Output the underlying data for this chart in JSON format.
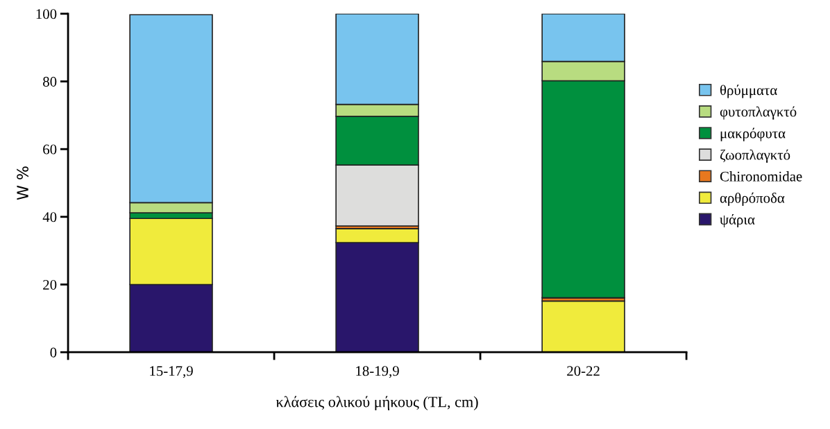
{
  "chart_data": {
    "type": "bar",
    "stacked": true,
    "xlabel": "κλάσεις ολικού μήκους (TL, cm)",
    "ylabel": "W %",
    "categories": [
      "15-17,9",
      "18-19,9",
      "20-22"
    ],
    "series": [
      {
        "name": "ψάρια",
        "color": "#29166b",
        "values": [
          20,
          32.4,
          0
        ]
      },
      {
        "name": "αρθρόποδα",
        "color": "#f0eb3c",
        "values": [
          19.5,
          4.1,
          15.1
        ]
      },
      {
        "name": "Chironomidae",
        "color": "#e8781e",
        "values": [
          null,
          0.8,
          1.0
        ]
      },
      {
        "name": "ζωοπλαγκτό",
        "color": "#dddddc",
        "values": [
          0,
          18,
          0
        ]
      },
      {
        "name": "μακρόφυτα",
        "color": "#00903e",
        "values": [
          1.7,
          14.4,
          64.1
        ]
      },
      {
        "name": "φυτοπλαγκτό",
        "color": "#b8dc80",
        "values": [
          3,
          3.5,
          5.7
        ]
      },
      {
        "name": "θρύμματα",
        "color": "#78c4ee",
        "values": [
          55.5,
          26.8,
          14.1
        ]
      }
    ],
    "ylim": [
      0,
      100
    ],
    "yticks": [
      0,
      20,
      40,
      60,
      80,
      100
    ],
    "grid": false,
    "legend": "right"
  }
}
